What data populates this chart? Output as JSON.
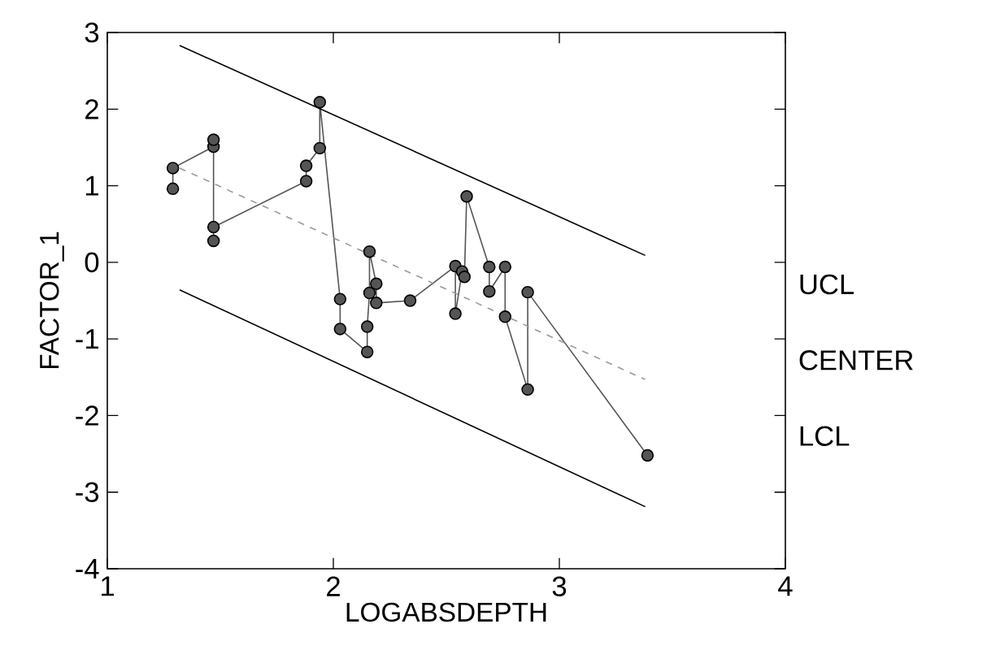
{
  "chart_data": {
    "type": "line",
    "xlabel": "LOGABSDEPTH",
    "ylabel": "FACTOR_1",
    "xlim": [
      1,
      4
    ],
    "ylim": [
      -4,
      3
    ],
    "xticks": [
      1,
      2,
      3,
      4
    ],
    "yticks": [
      -4,
      -3,
      -2,
      -1,
      0,
      1,
      2,
      3
    ],
    "annotations": [
      "UCL",
      "CENTER",
      "LCL"
    ],
    "series": [
      {
        "color": "#555555",
        "marker": "circle",
        "x": [
          1.29,
          1.29,
          1.47,
          1.47,
          1.47,
          1.47,
          1.88,
          1.88,
          1.94,
          1.94,
          2.03,
          2.03,
          2.15,
          2.15,
          2.16,
          2.16,
          2.19,
          2.19,
          2.34,
          2.54,
          2.54,
          2.57,
          2.58,
          2.59,
          2.69,
          2.69,
          2.76,
          2.76,
          2.86,
          2.86,
          3.39
        ],
        "values": [
          0.96,
          1.23,
          1.51,
          1.6,
          0.28,
          0.46,
          1.06,
          1.26,
          1.49,
          2.09,
          -0.48,
          -0.87,
          -1.17,
          -0.84,
          -0.4,
          0.14,
          -0.28,
          -0.53,
          -0.5,
          -0.05,
          -0.67,
          -0.12,
          -0.19,
          0.86,
          -0.06,
          -0.38,
          -0.06,
          -0.71,
          -1.66,
          -0.39,
          -2.52
        ]
      },
      {
        "color": "#000000",
        "marker": "none",
        "x": [
          1.32,
          3.38
        ],
        "values": [
          2.83,
          0.09
        ]
      },
      {
        "color": "#999999",
        "marker": "none",
        "line_style": "dashed",
        "x": [
          1.32,
          3.38
        ],
        "values": [
          1.23,
          -1.53
        ]
      },
      {
        "color": "#000000",
        "marker": "none",
        "x": [
          1.32,
          3.38
        ],
        "values": [
          -0.36,
          -3.19
        ]
      }
    ]
  }
}
